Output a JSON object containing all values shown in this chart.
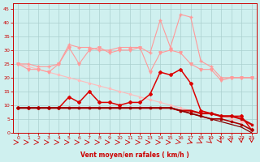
{
  "x": [
    0,
    1,
    2,
    3,
    4,
    5,
    6,
    7,
    8,
    9,
    10,
    11,
    12,
    13,
    14,
    15,
    16,
    17,
    18,
    19,
    20,
    21,
    22,
    23
  ],
  "line_rafales": [
    25,
    25,
    24,
    24,
    25,
    32,
    31,
    31,
    30,
    30,
    31,
    31,
    31,
    29,
    41,
    31,
    43,
    42,
    26,
    24,
    20,
    20,
    20,
    20
  ],
  "line_moy": [
    25,
    23,
    23,
    22,
    25,
    31,
    25,
    30,
    31,
    29,
    30,
    30,
    31,
    22,
    29,
    30,
    29,
    25,
    23,
    23,
    19,
    20,
    20,
    20
  ],
  "line_peak": [
    9,
    9,
    9,
    9,
    9,
    13,
    11,
    15,
    11,
    11,
    10,
    11,
    11,
    14,
    22,
    21,
    23,
    18,
    8,
    7,
    6,
    6,
    6,
    1
  ],
  "line_mean1": [
    9,
    9,
    9,
    9,
    9,
    9,
    9,
    9,
    9,
    9,
    9,
    9,
    9,
    9,
    9,
    9,
    8,
    8,
    7,
    7,
    6,
    6,
    5,
    3
  ],
  "line_mean2": [
    9,
    9,
    9,
    9,
    9,
    9,
    9,
    9,
    9,
    9,
    9,
    9,
    9,
    9,
    9,
    9,
    8,
    7,
    6,
    5,
    5,
    4,
    3,
    1
  ],
  "line_mean3": [
    9,
    9,
    9,
    9,
    9,
    9,
    9,
    9,
    9,
    9,
    9,
    9,
    9,
    9,
    9,
    9,
    8,
    7,
    6,
    5,
    4,
    3,
    2,
    0
  ],
  "line_diag": [
    25,
    24,
    23,
    22,
    21,
    20,
    19,
    18,
    17,
    16,
    15,
    14,
    13,
    12,
    11,
    10,
    9,
    8,
    7,
    7,
    6,
    5,
    4,
    3
  ],
  "bg_color": "#cff0ef",
  "grid_color": "#aacfcf",
  "c_rafales": "#ff9999",
  "c_moy": "#ff9999",
  "c_peak": "#dd0000",
  "c_mean1": "#cc0000",
  "c_mean2": "#aa0000",
  "c_mean3": "#880000",
  "c_diag": "#ffbbbb",
  "c_spine": "#cc0000",
  "c_tick": "#cc0000",
  "c_arrow": "#cc0000",
  "xlabel": "Vent moyen/en rafales ( km/h )",
  "ylim": [
    0,
    47
  ],
  "xlim": [
    -0.5,
    23.5
  ],
  "yticks": [
    0,
    5,
    10,
    15,
    20,
    25,
    30,
    35,
    40,
    45
  ],
  "xticks": [
    0,
    1,
    2,
    3,
    4,
    5,
    6,
    7,
    8,
    9,
    10,
    11,
    12,
    13,
    14,
    15,
    16,
    17,
    18,
    19,
    20,
    21,
    22,
    23
  ]
}
